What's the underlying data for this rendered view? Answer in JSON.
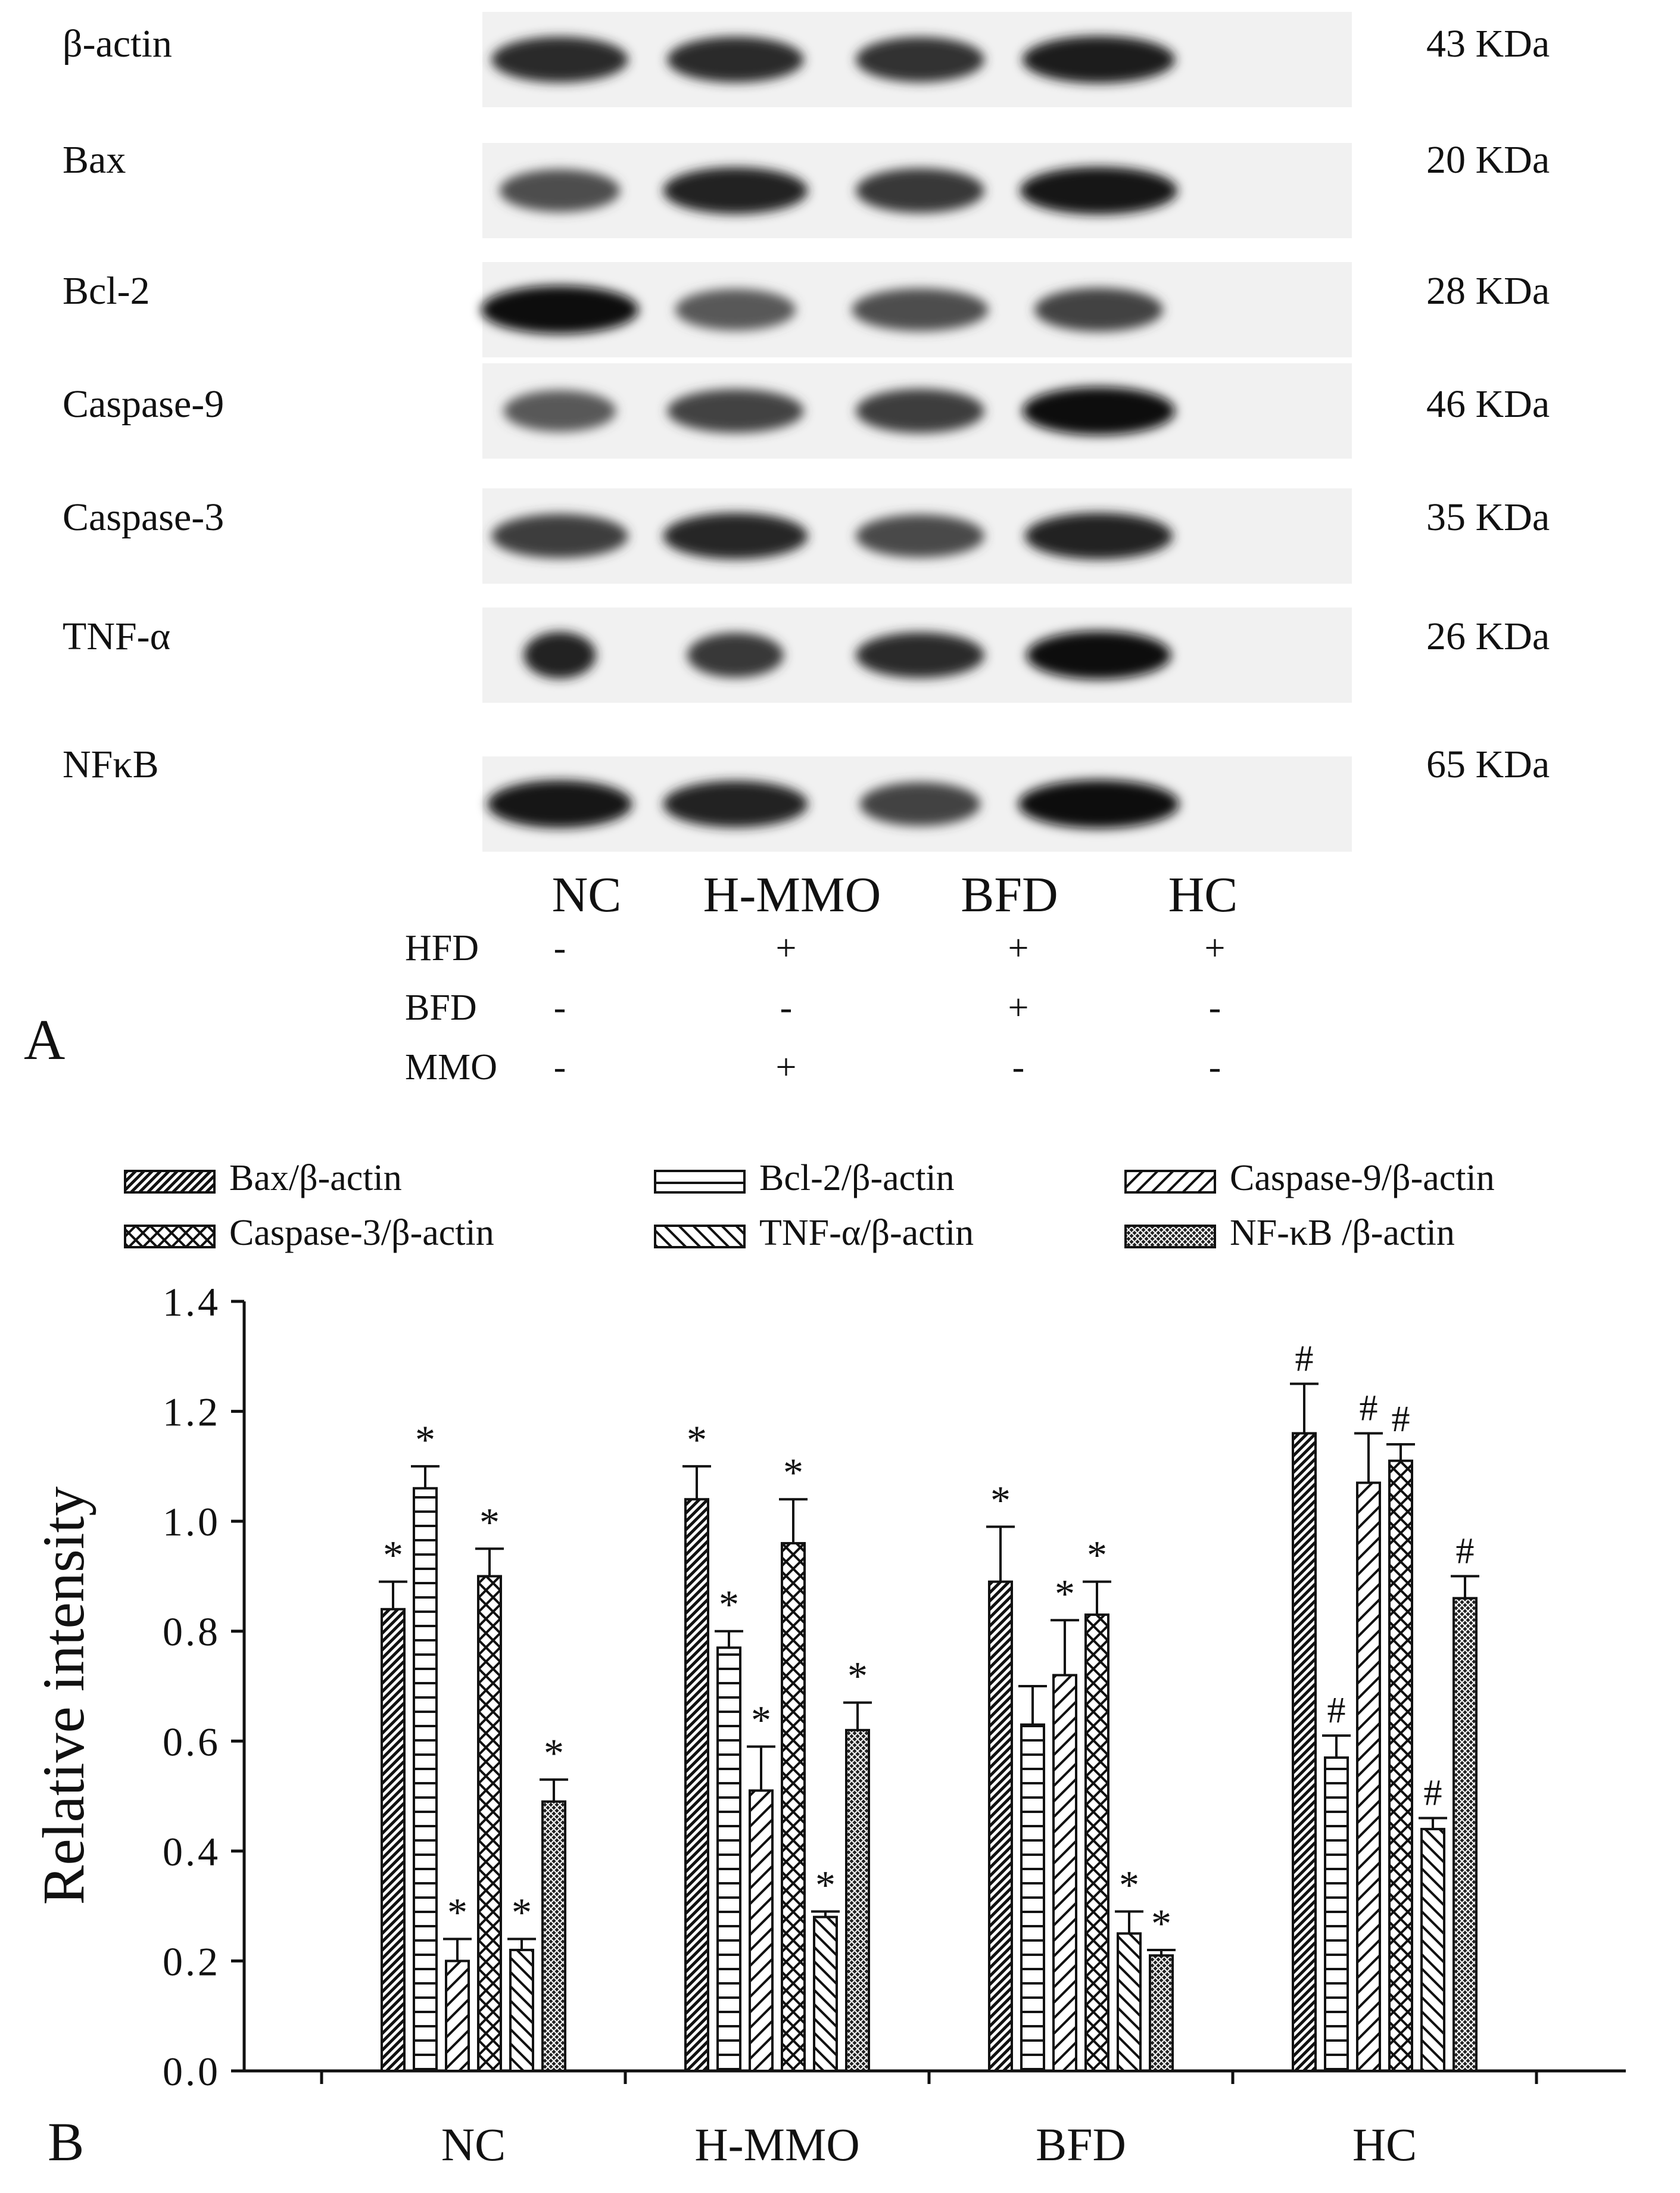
{
  "panel_a": {
    "label": "A",
    "blots": [
      {
        "protein": "β-actin",
        "size": "43 KDa",
        "intensity": [
          0.85,
          0.85,
          0.82,
          0.92
        ],
        "widths": [
          0.85,
          0.85,
          0.8,
          0.95
        ]
      },
      {
        "protein": "Bax",
        "size": "20 KDa",
        "intensity": [
          0.7,
          0.9,
          0.8,
          0.95
        ],
        "widths": [
          0.75,
          0.9,
          0.8,
          0.98
        ]
      },
      {
        "protein": "Bcl-2",
        "size": "28 KDa",
        "intensity": [
          0.98,
          0.65,
          0.7,
          0.75
        ],
        "widths": [
          0.98,
          0.75,
          0.85,
          0.8
        ]
      },
      {
        "protein": "Caspase-9",
        "size": "46 KDa",
        "intensity": [
          0.65,
          0.75,
          0.78,
          0.98
        ],
        "widths": [
          0.7,
          0.85,
          0.8,
          0.95
        ]
      },
      {
        "protein": "Caspase-3",
        "size": "35 KDa",
        "intensity": [
          0.78,
          0.88,
          0.72,
          0.9
        ],
        "widths": [
          0.85,
          0.9,
          0.8,
          0.92
        ]
      },
      {
        "protein": "TNF-α",
        "size": "26 KDa",
        "intensity": [
          0.9,
          0.8,
          0.85,
          0.98
        ],
        "widths": [
          0.45,
          0.6,
          0.8,
          0.9
        ]
      },
      {
        "protein": "NFκB",
        "size": "65 KDa",
        "intensity": [
          0.95,
          0.9,
          0.75,
          0.99
        ],
        "widths": [
          0.9,
          0.9,
          0.75,
          1.0
        ]
      }
    ],
    "lanes": [
      "NC",
      "H-MMO",
      "BFD",
      "HC"
    ],
    "treatments": [
      {
        "name": "HFD",
        "marks": [
          "-",
          "+",
          "+",
          "+"
        ]
      },
      {
        "name": "BFD",
        "marks": [
          "-",
          "-",
          "+",
          "-"
        ]
      },
      {
        "name": "MMO",
        "marks": [
          "-",
          "+",
          "-",
          "-"
        ]
      }
    ]
  },
  "panel_b_label": "B",
  "chart_data": {
    "type": "bar",
    "categories": [
      "NC",
      "H-MMO",
      "BFD",
      "HC"
    ],
    "ylabel": "Relative intensity",
    "ylim": [
      0,
      1.4
    ],
    "yticks": [
      "0.0",
      "0.2",
      "0.4",
      "0.6",
      "0.8",
      "1.0",
      "1.2",
      "1.4"
    ],
    "legend_position": "top",
    "series": [
      {
        "name": "Bax/β-actin",
        "pattern": "diag-right",
        "values": [
          0.84,
          1.04,
          0.89,
          1.16
        ],
        "errors": [
          0.05,
          0.06,
          0.1,
          0.09
        ],
        "marks": [
          "*",
          "*",
          "*",
          "#"
        ]
      },
      {
        "name": "Bcl-2/β-actin",
        "pattern": "horizontal",
        "values": [
          1.06,
          0.77,
          0.63,
          0.57
        ],
        "errors": [
          0.04,
          0.03,
          0.07,
          0.04
        ],
        "marks": [
          "*",
          "*",
          "",
          "#"
        ]
      },
      {
        "name": "Caspase-9/β-actin",
        "pattern": "diag-wide",
        "values": [
          0.2,
          0.51,
          0.72,
          1.07
        ],
        "errors": [
          0.04,
          0.08,
          0.1,
          0.09
        ],
        "marks": [
          "*",
          "*",
          "*",
          "#"
        ]
      },
      {
        "name": "Caspase-3/β-actin",
        "pattern": "crosshatch",
        "values": [
          0.9,
          0.96,
          0.83,
          1.11
        ],
        "errors": [
          0.05,
          0.08,
          0.06,
          0.03
        ],
        "marks": [
          "*",
          "*",
          "*",
          "#"
        ]
      },
      {
        "name": "TNF-α/β-actin",
        "pattern": "diag-left",
        "values": [
          0.22,
          0.28,
          0.25,
          0.44
        ],
        "errors": [
          0.02,
          0.01,
          0.04,
          0.02
        ],
        "marks": [
          "*",
          "*",
          "*",
          "#"
        ]
      },
      {
        "name": "NF-κB /β-actin",
        "pattern": "dense",
        "values": [
          0.49,
          0.62,
          0.21,
          0.86
        ],
        "errors": [
          0.04,
          0.05,
          0.01,
          0.04
        ],
        "marks": [
          "*",
          "*",
          "*",
          "#"
        ]
      }
    ]
  }
}
